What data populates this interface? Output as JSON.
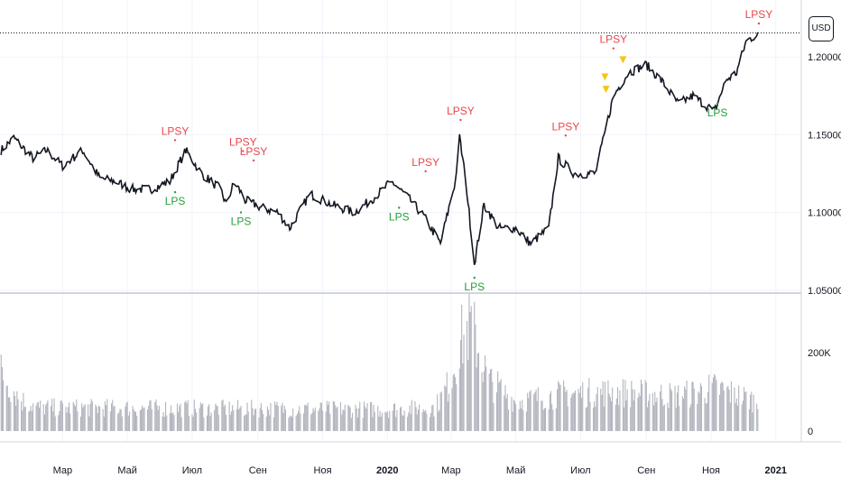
{
  "currency_badge": "USD",
  "chart_data": [
    {
      "type": "line",
      "pane": "price",
      "series": [
        {
          "values": []
        }
      ],
      "ylim": [
        1.05,
        1.232
      ],
      "yticks": [
        "1.20000",
        "1.15000",
        "1.10000",
        "1.05000"
      ],
      "ytick_values": [
        1.2,
        1.15,
        1.1,
        1.05
      ],
      "current_price": 1.2155,
      "xticks": [
        "Мар",
        "Май",
        "Июл",
        "Сен",
        "Ноя",
        "2020",
        "Мар",
        "Май",
        "Июл",
        "Сен",
        "Ноя",
        "2021"
      ],
      "xtick_dates": [
        "2019-03-01",
        "2019-05-01",
        "2019-07-01",
        "2019-09-01",
        "2019-11-01",
        "2020-01-01",
        "2020-03-01",
        "2020-05-01",
        "2020-07-01",
        "2020-09-01",
        "2020-11-01",
        "2021-01-01"
      ],
      "anchors": [
        [
          "2019-01-02",
          1.14
        ],
        [
          "2019-01-14",
          1.148
        ],
        [
          "2019-02-01",
          1.135
        ],
        [
          "2019-02-14",
          1.14
        ],
        [
          "2019-03-01",
          1.13
        ],
        [
          "2019-03-20",
          1.14
        ],
        [
          "2019-04-05",
          1.122
        ],
        [
          "2019-04-20",
          1.12
        ],
        [
          "2019-05-05",
          1.115
        ],
        [
          "2019-05-23",
          1.115
        ],
        [
          "2019-06-10",
          1.12
        ],
        [
          "2019-06-25",
          1.14
        ],
        [
          "2019-07-10",
          1.125
        ],
        [
          "2019-07-28",
          1.115
        ],
        [
          "2019-08-02",
          1.105
        ],
        [
          "2019-08-10",
          1.12
        ],
        [
          "2019-08-20",
          1.108
        ],
        [
          "2019-09-05",
          1.103
        ],
        [
          "2019-09-20",
          1.1
        ],
        [
          "2019-10-01",
          1.09
        ],
        [
          "2019-10-20",
          1.112
        ],
        [
          "2019-11-10",
          1.105
        ],
        [
          "2019-12-01",
          1.1
        ],
        [
          "2019-12-20",
          1.11
        ],
        [
          "2020-01-05",
          1.12
        ],
        [
          "2020-01-20",
          1.11
        ],
        [
          "2020-02-05",
          1.097
        ],
        [
          "2020-02-20",
          1.08
        ],
        [
          "2020-03-05",
          1.12
        ],
        [
          "2020-03-09",
          1.148
        ],
        [
          "2020-03-15",
          1.12
        ],
        [
          "2020-03-23",
          1.067
        ],
        [
          "2020-04-01",
          1.105
        ],
        [
          "2020-04-15",
          1.09
        ],
        [
          "2020-05-01",
          1.09
        ],
        [
          "2020-05-15",
          1.08
        ],
        [
          "2020-06-01",
          1.09
        ],
        [
          "2020-06-10",
          1.135
        ],
        [
          "2020-06-25",
          1.125
        ],
        [
          "2020-07-15",
          1.125
        ],
        [
          "2020-08-01",
          1.175
        ],
        [
          "2020-08-15",
          1.19
        ],
        [
          "2020-09-01",
          1.195
        ],
        [
          "2020-09-15",
          1.185
        ],
        [
          "2020-10-01",
          1.17
        ],
        [
          "2020-10-15",
          1.175
        ],
        [
          "2020-11-04",
          1.165
        ],
        [
          "2020-11-15",
          1.185
        ],
        [
          "2020-11-25",
          1.19
        ],
        [
          "2020-12-04",
          1.21
        ],
        [
          "2020-12-15",
          1.215
        ]
      ],
      "annotations": [
        {
          "text": "LPSY",
          "date": "2019-06-15",
          "value": 1.15,
          "color": "red"
        },
        {
          "text": "LPSY",
          "date": "2019-08-18",
          "value": 1.143,
          "color": "red"
        },
        {
          "text": "LPSY",
          "date": "2019-08-28",
          "value": 1.137,
          "color": "red"
        },
        {
          "text": "LPS",
          "date": "2019-06-15",
          "value": 1.105,
          "color": "green"
        },
        {
          "text": "LPS",
          "date": "2019-08-16",
          "value": 1.092,
          "color": "green"
        },
        {
          "text": "LPSY",
          "date": "2020-02-06",
          "value": 1.13,
          "color": "red"
        },
        {
          "text": "LPS",
          "date": "2020-01-12",
          "value": 1.095,
          "color": "green"
        },
        {
          "text": "LPSY",
          "date": "2020-03-10",
          "value": 1.163,
          "color": "red"
        },
        {
          "text": "LPS",
          "date": "2020-03-23",
          "value": 1.05,
          "color": "green"
        },
        {
          "text": "LPSY",
          "date": "2020-06-17",
          "value": 1.153,
          "color": "red"
        },
        {
          "text": "LPSY",
          "date": "2020-08-01",
          "value": 1.209,
          "color": "red"
        },
        {
          "text": "LPS",
          "date": "2020-11-07",
          "value": 1.162,
          "color": "green"
        },
        {
          "text": "LPSY",
          "date": "2020-12-16",
          "value": 1.225,
          "color": "red"
        }
      ],
      "markers": [
        {
          "date": "2020-07-24",
          "value": 1.186
        },
        {
          "date": "2020-07-25",
          "value": 1.178
        },
        {
          "date": "2020-08-10",
          "value": 1.197
        }
      ],
      "colors": {
        "price": "#131722",
        "lpsy": "#e8464b",
        "lps": "#26a03a",
        "marker": "#f5c518",
        "grid": "#f0f3fa"
      }
    },
    {
      "type": "bar",
      "pane": "volume",
      "values": [],
      "ylim": [
        0,
        340000
      ],
      "yticks": [
        "200K",
        "0"
      ],
      "ytick_values": [
        200000,
        0
      ],
      "anchors": [
        [
          "2019-01-02",
          150000
        ],
        [
          "2019-01-20",
          80000
        ],
        [
          "2019-02-05",
          60000
        ],
        [
          "2019-12-31",
          55000
        ],
        [
          "2020-02-15",
          60000
        ],
        [
          "2020-02-28",
          120000
        ],
        [
          "2020-03-10",
          230000
        ],
        [
          "2020-03-20",
          270000
        ],
        [
          "2020-04-05",
          130000
        ],
        [
          "2020-05-01",
          75000
        ],
        [
          "2020-06-15",
          95000
        ],
        [
          "2020-08-01",
          100000
        ],
        [
          "2020-10-01",
          90000
        ],
        [
          "2020-11-05",
          110000
        ],
        [
          "2020-12-15",
          75000
        ]
      ],
      "colors": {
        "bar": "#b2b5be"
      }
    }
  ]
}
